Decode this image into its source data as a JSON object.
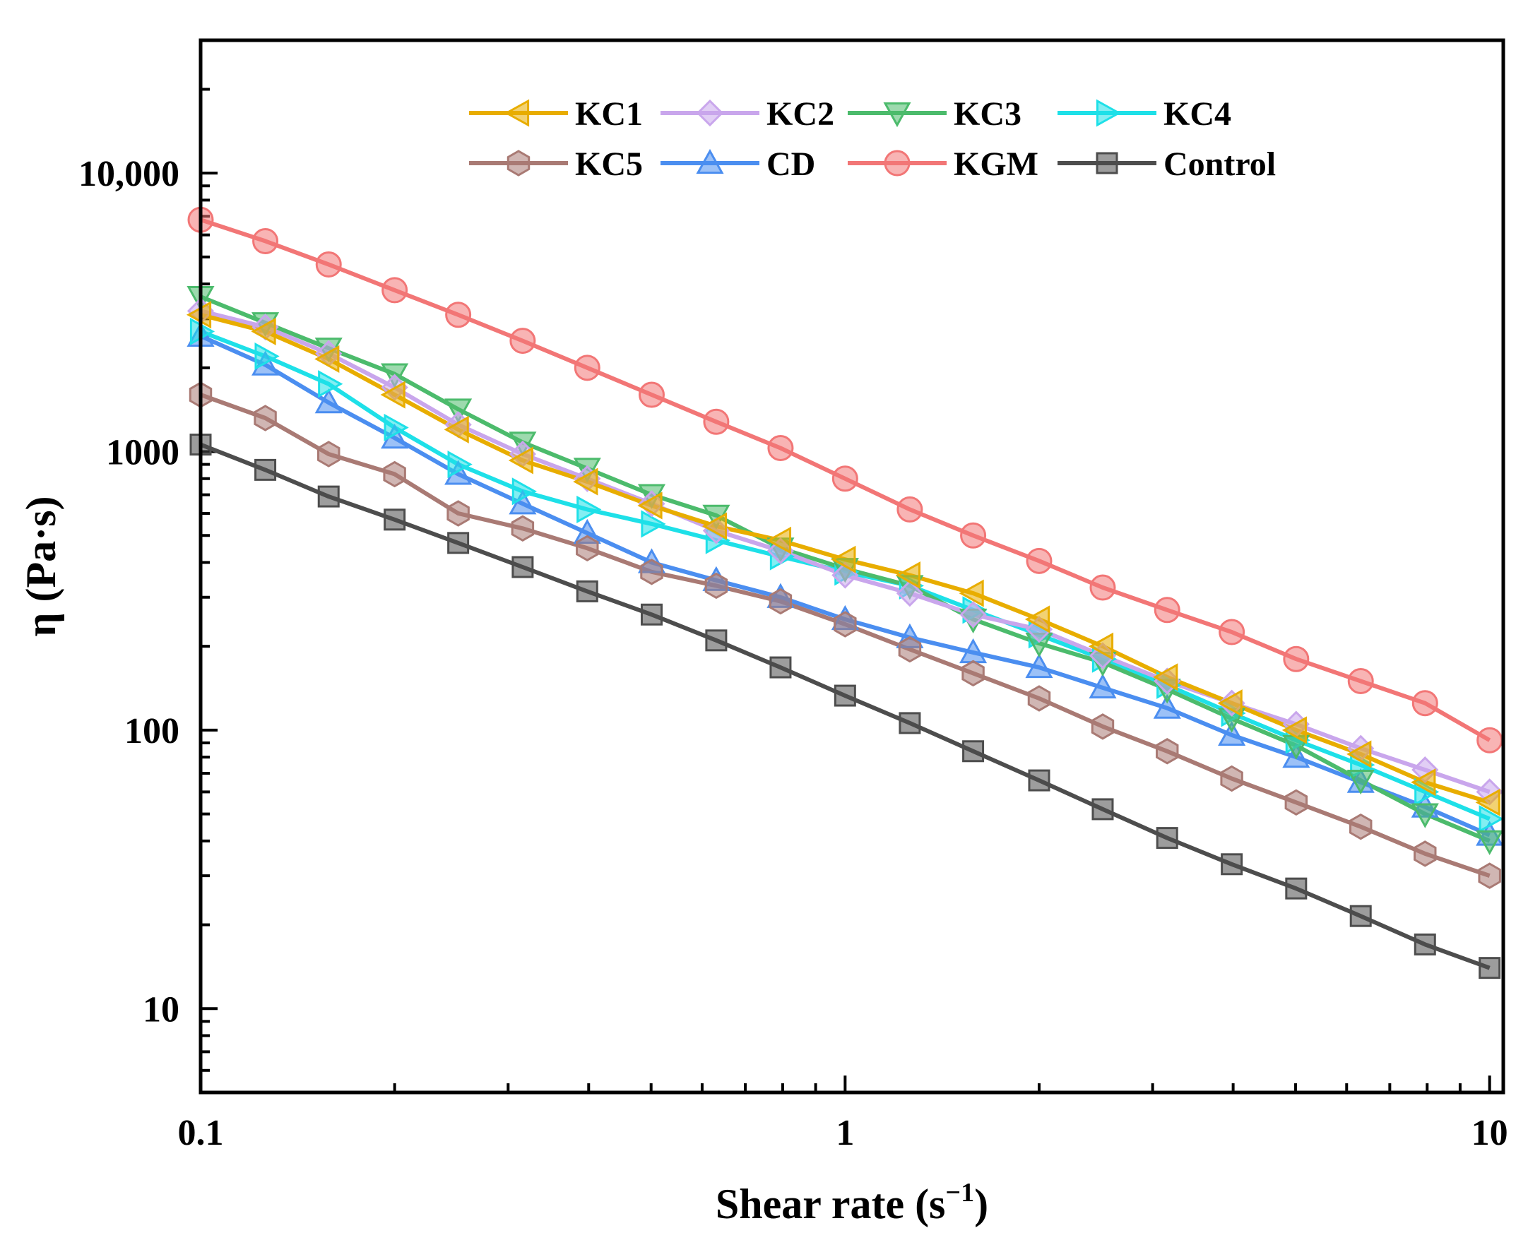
{
  "chart_data": {
    "type": "line",
    "xscale": "log",
    "yscale": "log",
    "xlim": [
      0.1,
      10.5
    ],
    "ylim": [
      5,
      30000
    ],
    "xticks": [
      {
        "value": 0.1,
        "label": "0.1"
      },
      {
        "value": 1,
        "label": "1"
      },
      {
        "value": 10,
        "label": "10"
      }
    ],
    "yticks": [
      {
        "value": 10,
        "label": "10"
      },
      {
        "value": 100,
        "label": "100"
      },
      {
        "value": 1000,
        "label": "1000"
      },
      {
        "value": 10000,
        "label": "10,000"
      }
    ],
    "xlabel": {
      "main": "Shear rate (s",
      "sup": "−1",
      "close": ")"
    },
    "ylabel": "η (Pa·s)",
    "legend": {
      "placement": "top",
      "columns": 4
    },
    "x": [
      0.1,
      0.126,
      0.158,
      0.2,
      0.251,
      0.316,
      0.398,
      0.501,
      0.631,
      0.794,
      1,
      1.26,
      1.58,
      2,
      2.51,
      3.16,
      3.98,
      5.01,
      6.31,
      7.94,
      10
    ],
    "series": [
      {
        "name": "KC1",
        "color": "#e8ad00",
        "marker": "triangle-left",
        "values": [
          3100,
          2700,
          2150,
          1600,
          1200,
          930,
          780,
          640,
          540,
          480,
          410,
          360,
          310,
          250,
          200,
          155,
          125,
          100,
          82,
          65,
          55
        ]
      },
      {
        "name": "KC2",
        "color": "#c9a6ec",
        "marker": "diamond",
        "values": [
          3200,
          2800,
          2250,
          1700,
          1250,
          980,
          800,
          650,
          520,
          440,
          360,
          310,
          260,
          230,
          185,
          150,
          125,
          105,
          86,
          72,
          60
        ]
      },
      {
        "name": "KC3",
        "color": "#4cbb6c",
        "marker": "triangle-down",
        "values": [
          3600,
          2900,
          2350,
          1900,
          1420,
          1080,
          870,
          700,
          590,
          450,
          380,
          330,
          250,
          205,
          175,
          140,
          110,
          88,
          66,
          50,
          40
        ]
      },
      {
        "name": "KC4",
        "color": "#1ee0e8",
        "marker": "triangle-right",
        "values": [
          2700,
          2200,
          1750,
          1220,
          900,
          720,
          620,
          550,
          480,
          420,
          370,
          330,
          270,
          220,
          180,
          145,
          115,
          92,
          75,
          60,
          48
        ]
      },
      {
        "name": "KC5",
        "color": "#a97a74",
        "marker": "hexagon",
        "values": [
          1600,
          1320,
          980,
          830,
          600,
          530,
          450,
          370,
          330,
          290,
          240,
          195,
          160,
          130,
          103,
          84,
          67,
          55,
          45,
          36,
          30
        ]
      },
      {
        "name": "CD",
        "color": "#4b8ef0",
        "marker": "triangle-up",
        "values": [
          2600,
          2050,
          1500,
          1120,
          830,
          650,
          510,
          400,
          345,
          300,
          250,
          215,
          190,
          168,
          142,
          120,
          96,
          80,
          65,
          53,
          42
        ]
      },
      {
        "name": "KGM",
        "color": "#f27676",
        "marker": "circle",
        "values": [
          6800,
          5700,
          4700,
          3800,
          3100,
          2500,
          2000,
          1600,
          1280,
          1030,
          800,
          620,
          500,
          405,
          325,
          270,
          225,
          180,
          150,
          125,
          92
        ]
      },
      {
        "name": "Control",
        "color": "#4d4d4d",
        "marker": "square",
        "values": [
          1060,
          860,
          690,
          570,
          470,
          385,
          315,
          260,
          210,
          168,
          133,
          106,
          84,
          66,
          52,
          41,
          33,
          27,
          21.5,
          17,
          14
        ]
      }
    ]
  }
}
